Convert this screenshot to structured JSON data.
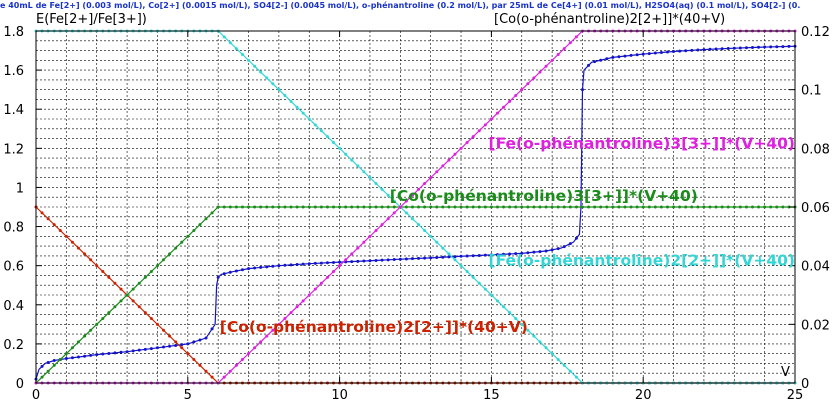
{
  "title": "e 40mL de Fe[2+] (0.003 mol/L), Co[2+] (0.0015 mol/L), SO4[2-] (0.0045 mol/L), o-phénantroline (0.2 mol/L),  par 25mL  de Ce[4+] (0.01 mol/L), H2SO4(aq) (0.1 mol/L), SO4[2-] (0.",
  "chart_data": {
    "type": "line",
    "xlabel": "V",
    "ylabel_left": "E(Fe[2+]/Fe[3+])",
    "ylabel_right": "[Co(o-phénantroline)2[2+]]*(40+V)",
    "xlim": [
      0,
      25
    ],
    "ylim_left": [
      0,
      1.8
    ],
    "ylim_right": [
      0,
      0.12
    ],
    "x_ticks": [
      0,
      5,
      10,
      15,
      20,
      25
    ],
    "y_left_ticks": [
      0,
      0.2,
      0.4,
      0.6,
      0.8,
      1,
      1.2,
      1.4,
      1.6,
      1.8
    ],
    "y_left_tick_labels": [
      "0",
      "0.2",
      "0.4",
      "0.6",
      "0.8",
      "1",
      "1.2",
      "1.4",
      "1.6",
      "1.8"
    ],
    "y_right_ticks": [
      0,
      0.02,
      0.04,
      0.06,
      0.08,
      0.1,
      0.12
    ],
    "y_right_tick_labels": [
      "0",
      "0.02",
      "0.04",
      "0.06",
      "0.08",
      "0.1",
      "0.12"
    ],
    "grid": true,
    "series": [
      {
        "name": "E(Fe[2+]/Fe[3+])",
        "color": "#1414c8",
        "axis": "left",
        "points": [
          [
            0,
            0.02
          ],
          [
            0.1,
            0.07
          ],
          [
            0.3,
            0.1
          ],
          [
            0.6,
            0.115
          ],
          [
            1,
            0.125
          ],
          [
            1.5,
            0.135
          ],
          [
            2,
            0.145
          ],
          [
            3,
            0.16
          ],
          [
            4,
            0.18
          ],
          [
            5,
            0.2
          ],
          [
            5.6,
            0.23
          ],
          [
            5.9,
            0.3
          ],
          [
            5.95,
            0.5
          ],
          [
            6,
            0.54
          ],
          [
            6.1,
            0.555
          ],
          [
            6.5,
            0.57
          ],
          [
            7,
            0.585
          ],
          [
            8,
            0.6
          ],
          [
            9,
            0.61
          ],
          [
            10,
            0.618
          ],
          [
            11,
            0.625
          ],
          [
            12,
            0.633
          ],
          [
            13,
            0.64
          ],
          [
            14,
            0.648
          ],
          [
            15,
            0.655
          ],
          [
            16,
            0.663
          ],
          [
            16.8,
            0.675
          ],
          [
            17.3,
            0.69
          ],
          [
            17.7,
            0.72
          ],
          [
            17.9,
            0.76
          ],
          [
            17.95,
            0.9
          ],
          [
            18,
            1.5
          ],
          [
            18.05,
            1.6
          ],
          [
            18.3,
            1.64
          ],
          [
            19,
            1.665
          ],
          [
            20,
            1.682
          ],
          [
            21,
            1.695
          ],
          [
            22,
            1.705
          ],
          [
            23,
            1.712
          ],
          [
            24,
            1.718
          ],
          [
            25,
            1.722
          ]
        ]
      },
      {
        "name": "[Co(o-phénantroline)2[2+]]*(40+V)",
        "color": "#cc2200",
        "axis": "right",
        "points": [
          [
            0,
            0.06
          ],
          [
            6,
            0
          ],
          [
            25,
            0
          ]
        ]
      },
      {
        "name": "[Co(o-phénantroline)3[3+]]*(V+40)",
        "color": "#1a8c1a",
        "axis": "right",
        "points": [
          [
            0,
            0
          ],
          [
            6,
            0.06
          ],
          [
            25,
            0.06
          ]
        ]
      },
      {
        "name": "[Fe(o-phénantroline)2[2+]]*(V+40)",
        "color": "#33d6d6",
        "axis": "right",
        "points": [
          [
            0,
            0.12
          ],
          [
            6,
            0.12
          ],
          [
            18,
            0
          ],
          [
            25,
            0
          ]
        ]
      },
      {
        "name": "[Fe(o-phénantroline)3[3+]]*(V+40)",
        "color": "#e020e0",
        "axis": "right",
        "points": [
          [
            0,
            0
          ],
          [
            6,
            0
          ],
          [
            18,
            0.12
          ],
          [
            25,
            0.12
          ]
        ]
      }
    ],
    "annotations": [
      {
        "text": "[Fe(o-phénantroline)3[3+]]*(V+40)",
        "color": "#e020e0",
        "x": 25,
        "y": 1.2,
        "anchor": "end"
      },
      {
        "text": "[Co(o-phénantroline)3[3+]]*(V+40)",
        "color": "#1a8c1a",
        "x": 21.8,
        "y": 0.93,
        "anchor": "end"
      },
      {
        "text": "[Fe(o-phénantroline)2[2+]]*(V+40)",
        "color": "#33d6d6",
        "x": 25,
        "y": 0.6,
        "anchor": "end"
      },
      {
        "text": "[Co(o-phénantroline)2[2+]]*(40+V)",
        "color": "#cc2200",
        "x": 16.2,
        "y": 0.26,
        "anchor": "end"
      }
    ]
  }
}
